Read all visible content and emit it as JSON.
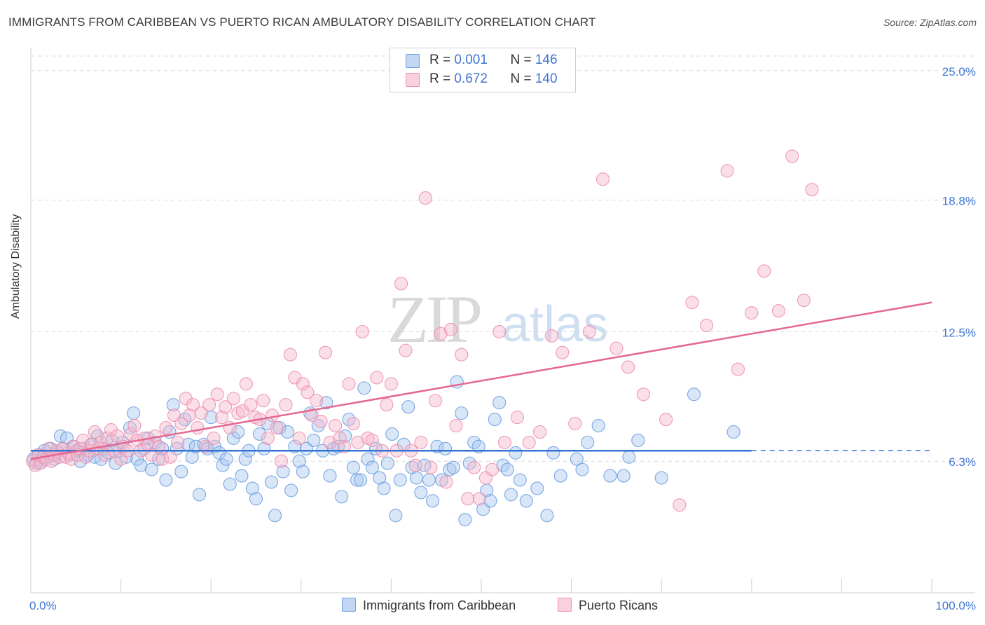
{
  "title": "IMMIGRANTS FROM CARIBBEAN VS PUERTO RICAN AMBULATORY DISABILITY CORRELATION CHART",
  "source": "Source: ZipAtlas.com",
  "watermark": {
    "zip": "ZIP",
    "atlas": "atlas"
  },
  "legend": {
    "series1": {
      "r_label": "R = ",
      "r_value": "0.001",
      "n_label": "N = ",
      "n_value": "146"
    },
    "series2": {
      "r_label": "R = ",
      "r_value": "0.672",
      "n_label": "N = ",
      "n_value": "140"
    }
  },
  "colors": {
    "blue_fill": "#a9c7ef",
    "blue_stroke": "#6d9ee0",
    "blue_line": "#3574d4",
    "pink_fill": "#f6b9cc",
    "pink_stroke": "#ec8fae",
    "pink_line": "#e46790",
    "grid": "#d9d9d9",
    "axis_text": "#3f76d1"
  },
  "chart_data": {
    "type": "scatter",
    "title": "IMMIGRANTS FROM CARIBBEAN VS PUERTO RICAN AMBULATORY DISABILITY CORRELATION CHART",
    "xlabel": "",
    "ylabel": "Ambulatory Disability",
    "xlim": [
      0,
      100
    ],
    "ylim": [
      0,
      26.3
    ],
    "x_tick_labels": [
      "0.0%",
      "100.0%"
    ],
    "y_ticks": [
      6.3,
      12.5,
      18.8,
      25.0
    ],
    "y_tick_labels": [
      "6.3%",
      "12.5%",
      "18.8%",
      "25.0%"
    ],
    "grid": "horizontal dashed",
    "legend_position": "top-center",
    "series": [
      {
        "name": "Immigrants from Caribbean",
        "color": "#6d9ee0",
        "trend": {
          "x0": 0,
          "y0": 6.8,
          "x1": 80,
          "y1": 6.8,
          "dashed_to": 100
        },
        "points": [
          [
            0.3,
            6.4
          ],
          [
            0.6,
            6.2
          ],
          [
            0.9,
            6.6
          ],
          [
            1.2,
            6.3
          ],
          [
            1.5,
            6.8
          ],
          [
            1.8,
            6.5
          ],
          [
            2.2,
            6.9
          ],
          [
            2.6,
            6.4
          ],
          [
            3.0,
            6.7
          ],
          [
            3.3,
            7.5
          ],
          [
            3.6,
            6.9
          ],
          [
            4.0,
            7.4
          ],
          [
            4.3,
            6.6
          ],
          [
            4.7,
            7.0
          ],
          [
            5.1,
            6.8
          ],
          [
            5.5,
            6.3
          ],
          [
            5.9,
            6.9
          ],
          [
            6.3,
            6.6
          ],
          [
            6.7,
            7.1
          ],
          [
            7.1,
            6.5
          ],
          [
            7.4,
            7.5
          ],
          [
            7.8,
            6.4
          ],
          [
            8.2,
            6.9
          ],
          [
            8.6,
            6.7
          ],
          [
            9.0,
            7.3
          ],
          [
            9.4,
            6.2
          ],
          [
            9.8,
            6.8
          ],
          [
            10.2,
            7.2
          ],
          [
            10.6,
            6.5
          ],
          [
            11.0,
            7.9
          ],
          [
            11.4,
            8.6
          ],
          [
            11.8,
            6.4
          ],
          [
            12.2,
            6.1
          ],
          [
            12.6,
            6.9
          ],
          [
            13.0,
            7.4
          ],
          [
            13.4,
            5.9
          ],
          [
            13.8,
            7.2
          ],
          [
            14.2,
            6.4
          ],
          [
            14.6,
            6.9
          ],
          [
            15.0,
            5.4
          ],
          [
            15.4,
            7.7
          ],
          [
            15.8,
            9.0
          ],
          [
            16.2,
            6.9
          ],
          [
            16.7,
            5.8
          ],
          [
            17.1,
            8.3
          ],
          [
            17.5,
            7.1
          ],
          [
            17.9,
            6.5
          ],
          [
            18.3,
            7.0
          ],
          [
            18.7,
            4.7
          ],
          [
            19.2,
            7.1
          ],
          [
            19.6,
            6.9
          ],
          [
            20.0,
            8.4
          ],
          [
            20.4,
            7.0
          ],
          [
            20.9,
            6.7
          ],
          [
            21.3,
            6.1
          ],
          [
            21.7,
            6.4
          ],
          [
            22.1,
            5.2
          ],
          [
            22.5,
            7.4
          ],
          [
            23.0,
            7.7
          ],
          [
            23.4,
            5.6
          ],
          [
            23.8,
            6.4
          ],
          [
            24.2,
            6.8
          ],
          [
            24.6,
            5.0
          ],
          [
            25.0,
            4.5
          ],
          [
            25.4,
            7.6
          ],
          [
            25.9,
            6.9
          ],
          [
            26.3,
            8.1
          ],
          [
            26.7,
            5.3
          ],
          [
            27.1,
            3.7
          ],
          [
            27.6,
            7.9
          ],
          [
            28.0,
            5.8
          ],
          [
            28.5,
            7.7
          ],
          [
            28.9,
            4.9
          ],
          [
            29.3,
            7.0
          ],
          [
            29.8,
            6.3
          ],
          [
            30.2,
            5.8
          ],
          [
            30.6,
            6.9
          ],
          [
            31.0,
            8.6
          ],
          [
            31.4,
            7.3
          ],
          [
            31.9,
            8.0
          ],
          [
            32.4,
            6.8
          ],
          [
            32.8,
            9.1
          ],
          [
            33.2,
            5.6
          ],
          [
            33.6,
            6.9
          ],
          [
            34.1,
            7.0
          ],
          [
            34.5,
            4.6
          ],
          [
            34.9,
            7.5
          ],
          [
            35.3,
            8.3
          ],
          [
            35.8,
            6.0
          ],
          [
            36.2,
            5.4
          ],
          [
            36.6,
            5.4
          ],
          [
            37.0,
            9.8
          ],
          [
            37.4,
            6.4
          ],
          [
            37.9,
            6.0
          ],
          [
            38.3,
            6.9
          ],
          [
            38.7,
            5.5
          ],
          [
            39.2,
            5.0
          ],
          [
            39.6,
            6.2
          ],
          [
            40.1,
            7.6
          ],
          [
            40.5,
            3.7
          ],
          [
            41.0,
            5.4
          ],
          [
            41.4,
            7.1
          ],
          [
            41.9,
            8.9
          ],
          [
            42.3,
            6.0
          ],
          [
            42.8,
            5.5
          ],
          [
            43.3,
            4.8
          ],
          [
            43.7,
            6.1
          ],
          [
            44.2,
            5.4
          ],
          [
            44.6,
            4.4
          ],
          [
            45.1,
            7.0
          ],
          [
            45.6,
            5.4
          ],
          [
            46.0,
            6.9
          ],
          [
            46.5,
            5.9
          ],
          [
            46.9,
            6.0
          ],
          [
            47.3,
            10.1
          ],
          [
            47.8,
            8.6
          ],
          [
            48.2,
            3.5
          ],
          [
            48.7,
            6.2
          ],
          [
            49.2,
            7.2
          ],
          [
            49.7,
            7.0
          ],
          [
            50.2,
            4.0
          ],
          [
            50.6,
            4.9
          ],
          [
            51.0,
            4.4
          ],
          [
            51.5,
            8.3
          ],
          [
            52.0,
            9.1
          ],
          [
            52.4,
            6.1
          ],
          [
            52.9,
            5.9
          ],
          [
            53.3,
            4.7
          ],
          [
            53.8,
            6.7
          ],
          [
            54.3,
            5.4
          ],
          [
            55.0,
            4.4
          ],
          [
            56.2,
            5.0
          ],
          [
            57.3,
            3.7
          ],
          [
            58.0,
            6.7
          ],
          [
            58.8,
            5.6
          ],
          [
            60.6,
            6.4
          ],
          [
            61.2,
            5.9
          ],
          [
            61.8,
            7.2
          ],
          [
            63.0,
            8.0
          ],
          [
            64.3,
            5.6
          ],
          [
            65.8,
            5.6
          ],
          [
            66.4,
            6.5
          ],
          [
            67.4,
            7.3
          ],
          [
            70.0,
            5.5
          ],
          [
            73.6,
            9.5
          ],
          [
            78.0,
            7.7
          ]
        ]
      },
      {
        "name": "Puerto Ricans",
        "color": "#ec8fae",
        "trend": {
          "x0": 0,
          "y0": 6.4,
          "x1": 100,
          "y1": 13.9
        },
        "points": [
          [
            0.2,
            6.3
          ],
          [
            0.5,
            6.1
          ],
          [
            0.8,
            6.6
          ],
          [
            1.1,
            6.2
          ],
          [
            1.4,
            6.5
          ],
          [
            1.7,
            6.4
          ],
          [
            2.0,
            6.9
          ],
          [
            2.3,
            6.3
          ],
          [
            2.6,
            6.6
          ],
          [
            2.9,
            6.8
          ],
          [
            3.2,
            6.5
          ],
          [
            3.6,
            6.9
          ],
          [
            3.9,
            6.5
          ],
          [
            4.2,
            6.7
          ],
          [
            4.5,
            6.4
          ],
          [
            4.8,
            7.0
          ],
          [
            5.2,
            6.6
          ],
          [
            5.5,
            6.9
          ],
          [
            5.8,
            7.3
          ],
          [
            6.1,
            6.5
          ],
          [
            6.5,
            6.8
          ],
          [
            6.8,
            7.1
          ],
          [
            7.1,
            7.7
          ],
          [
            7.5,
            6.9
          ],
          [
            7.8,
            7.2
          ],
          [
            8.2,
            6.6
          ],
          [
            8.5,
            7.4
          ],
          [
            8.9,
            7.8
          ],
          [
            9.2,
            6.8
          ],
          [
            9.6,
            7.5
          ],
          [
            10.0,
            6.4
          ],
          [
            10.3,
            7.0
          ],
          [
            10.7,
            6.8
          ],
          [
            11.1,
            7.6
          ],
          [
            11.5,
            8.0
          ],
          [
            11.8,
            7.3
          ],
          [
            12.2,
            6.8
          ],
          [
            12.6,
            7.4
          ],
          [
            13.0,
            7.1
          ],
          [
            13.4,
            6.6
          ],
          [
            13.8,
            7.5
          ],
          [
            14.2,
            7.0
          ],
          [
            14.6,
            6.4
          ],
          [
            15.0,
            7.9
          ],
          [
            15.5,
            6.5
          ],
          [
            15.9,
            8.5
          ],
          [
            16.3,
            7.2
          ],
          [
            16.7,
            8.1
          ],
          [
            17.2,
            9.3
          ],
          [
            17.6,
            8.5
          ],
          [
            18.0,
            9.0
          ],
          [
            18.5,
            7.9
          ],
          [
            18.9,
            8.6
          ],
          [
            19.4,
            7.0
          ],
          [
            19.8,
            9.0
          ],
          [
            20.3,
            7.4
          ],
          [
            20.7,
            9.5
          ],
          [
            21.2,
            8.4
          ],
          [
            21.6,
            8.9
          ],
          [
            22.1,
            7.9
          ],
          [
            22.5,
            9.3
          ],
          [
            23.0,
            8.6
          ],
          [
            23.5,
            8.7
          ],
          [
            23.9,
            10.0
          ],
          [
            24.4,
            9.0
          ],
          [
            24.9,
            8.4
          ],
          [
            25.4,
            8.3
          ],
          [
            25.8,
            9.2
          ],
          [
            26.3,
            7.4
          ],
          [
            26.8,
            8.5
          ],
          [
            27.3,
            7.9
          ],
          [
            27.8,
            6.3
          ],
          [
            28.3,
            9.0
          ],
          [
            28.8,
            11.4
          ],
          [
            29.3,
            10.3
          ],
          [
            29.8,
            7.4
          ],
          [
            30.2,
            10.0
          ],
          [
            30.7,
            9.6
          ],
          [
            31.2,
            8.5
          ],
          [
            31.7,
            9.2
          ],
          [
            32.2,
            8.2
          ],
          [
            32.7,
            11.5
          ],
          [
            33.2,
            7.2
          ],
          [
            33.8,
            8.0
          ],
          [
            34.3,
            7.4
          ],
          [
            34.8,
            7.0
          ],
          [
            35.3,
            10.0
          ],
          [
            35.8,
            8.1
          ],
          [
            36.3,
            7.2
          ],
          [
            36.8,
            12.5
          ],
          [
            37.4,
            7.4
          ],
          [
            37.9,
            7.3
          ],
          [
            38.4,
            10.3
          ],
          [
            39.0,
            6.8
          ],
          [
            39.5,
            9.0
          ],
          [
            40.0,
            10.0
          ],
          [
            40.6,
            6.8
          ],
          [
            41.1,
            14.8
          ],
          [
            41.6,
            11.6
          ],
          [
            42.2,
            6.8
          ],
          [
            42.7,
            6.1
          ],
          [
            43.3,
            7.2
          ],
          [
            43.8,
            18.9
          ],
          [
            44.4,
            6.0
          ],
          [
            44.9,
            9.2
          ],
          [
            45.5,
            12.4
          ],
          [
            46.1,
            5.3
          ],
          [
            46.6,
            12.6
          ],
          [
            47.2,
            8.0
          ],
          [
            47.8,
            11.4
          ],
          [
            48.5,
            4.5
          ],
          [
            49.2,
            6.0
          ],
          [
            49.8,
            4.5
          ],
          [
            50.5,
            5.5
          ],
          [
            51.2,
            5.9
          ],
          [
            52.0,
            12.5
          ],
          [
            52.6,
            7.2
          ],
          [
            54.0,
            8.4
          ],
          [
            55.3,
            7.2
          ],
          [
            56.5,
            7.7
          ],
          [
            57.8,
            12.3
          ],
          [
            59.0,
            11.5
          ],
          [
            60.4,
            8.1
          ],
          [
            62.0,
            12.5
          ],
          [
            63.5,
            19.8
          ],
          [
            65.0,
            11.7
          ],
          [
            66.3,
            10.8
          ],
          [
            68.0,
            9.5
          ],
          [
            70.5,
            8.3
          ],
          [
            72.0,
            4.2
          ],
          [
            73.4,
            13.9
          ],
          [
            75.0,
            12.8
          ],
          [
            77.3,
            20.2
          ],
          [
            78.5,
            10.7
          ],
          [
            80.0,
            13.4
          ],
          [
            81.4,
            15.4
          ],
          [
            83.0,
            13.5
          ],
          [
            84.5,
            20.9
          ],
          [
            85.8,
            14.0
          ],
          [
            86.7,
            19.3
          ]
        ]
      }
    ]
  }
}
